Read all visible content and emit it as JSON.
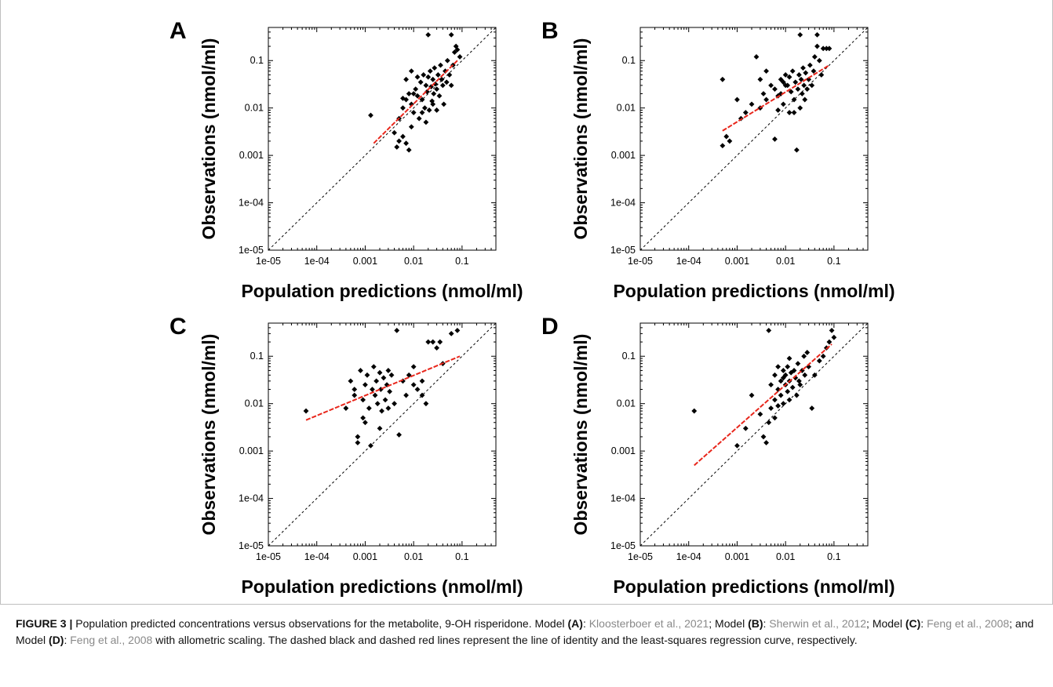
{
  "chart_data": [
    {
      "type": "scatter",
      "panel": "A",
      "xlabel": "Population predictions (nmol/ml)",
      "ylabel": "Observations (nmol/ml)",
      "xscale": "log",
      "yscale": "log",
      "xlim": [
        1e-05,
        0.5
      ],
      "ylim": [
        1e-05,
        0.5
      ],
      "xticks": [
        "1e-05",
        "1e-04",
        "0.001",
        "0.01",
        "0.1"
      ],
      "yticks": [
        "1e-05",
        "1e-04",
        "0.001",
        "0.01",
        "0.1"
      ],
      "identity_line": true,
      "regression": {
        "x": [
          0.0015,
          0.08
        ],
        "y": [
          0.0018,
          0.1
        ]
      },
      "points": [
        [
          0.0013,
          0.007
        ],
        [
          0.004,
          0.003
        ],
        [
          0.0045,
          0.0015
        ],
        [
          0.005,
          0.002
        ],
        [
          0.006,
          0.0025
        ],
        [
          0.007,
          0.0018
        ],
        [
          0.008,
          0.0013
        ],
        [
          0.009,
          0.004
        ],
        [
          0.005,
          0.006
        ],
        [
          0.006,
          0.01
        ],
        [
          0.007,
          0.015
        ],
        [
          0.008,
          0.02
        ],
        [
          0.009,
          0.012
        ],
        [
          0.01,
          0.008
        ],
        [
          0.011,
          0.025
        ],
        [
          0.012,
          0.018
        ],
        [
          0.013,
          0.006
        ],
        [
          0.014,
          0.035
        ],
        [
          0.015,
          0.015
        ],
        [
          0.016,
          0.05
        ],
        [
          0.017,
          0.01
        ],
        [
          0.018,
          0.03
        ],
        [
          0.019,
          0.022
        ],
        [
          0.02,
          0.045
        ],
        [
          0.021,
          0.009
        ],
        [
          0.022,
          0.06
        ],
        [
          0.023,
          0.028
        ],
        [
          0.024,
          0.014
        ],
        [
          0.025,
          0.04
        ],
        [
          0.026,
          0.02
        ],
        [
          0.027,
          0.07
        ],
        [
          0.028,
          0.032
        ],
        [
          0.03,
          0.025
        ],
        [
          0.032,
          0.05
        ],
        [
          0.034,
          0.018
        ],
        [
          0.036,
          0.08
        ],
        [
          0.038,
          0.04
        ],
        [
          0.04,
          0.03
        ],
        [
          0.042,
          0.012
        ],
        [
          0.045,
          0.06
        ],
        [
          0.048,
          0.035
        ],
        [
          0.05,
          0.1
        ],
        [
          0.055,
          0.05
        ],
        [
          0.06,
          0.03
        ],
        [
          0.065,
          0.08
        ],
        [
          0.07,
          0.15
        ],
        [
          0.075,
          0.2
        ],
        [
          0.08,
          0.17
        ],
        [
          0.09,
          0.12
        ],
        [
          0.02,
          0.35
        ],
        [
          0.06,
          0.35
        ],
        [
          0.007,
          0.04
        ],
        [
          0.009,
          0.06
        ],
        [
          0.012,
          0.045
        ],
        [
          0.01,
          0.02
        ],
        [
          0.006,
          0.016
        ],
        [
          0.015,
          0.008
        ],
        [
          0.018,
          0.005
        ],
        [
          0.025,
          0.012
        ],
        [
          0.03,
          0.009
        ]
      ]
    },
    {
      "type": "scatter",
      "panel": "B",
      "xlabel": "Population predictions (nmol/ml)",
      "ylabel": "Observations (nmol/ml)",
      "xscale": "log",
      "yscale": "log",
      "xlim": [
        1e-05,
        0.5
      ],
      "ylim": [
        1e-05,
        0.5
      ],
      "xticks": [
        "1e-05",
        "1e-04",
        "0.001",
        "0.01",
        "0.1"
      ],
      "yticks": [
        "1e-05",
        "1e-04",
        "0.001",
        "0.01",
        "0.1"
      ],
      "identity_line": true,
      "regression": {
        "x": [
          0.0005,
          0.08
        ],
        "y": [
          0.0033,
          0.08
        ]
      },
      "points": [
        [
          0.0005,
          0.04
        ],
        [
          0.0005,
          0.0016
        ],
        [
          0.0006,
          0.0025
        ],
        [
          0.0007,
          0.002
        ],
        [
          0.001,
          0.015
        ],
        [
          0.0012,
          0.006
        ],
        [
          0.0015,
          0.008
        ],
        [
          0.002,
          0.012
        ],
        [
          0.0025,
          0.12
        ],
        [
          0.003,
          0.01
        ],
        [
          0.0035,
          0.02
        ],
        [
          0.004,
          0.015
        ],
        [
          0.005,
          0.03
        ],
        [
          0.006,
          0.0022
        ],
        [
          0.006,
          0.025
        ],
        [
          0.007,
          0.018
        ],
        [
          0.008,
          0.04
        ],
        [
          0.009,
          0.012
        ],
        [
          0.01,
          0.05
        ],
        [
          0.011,
          0.03
        ],
        [
          0.012,
          0.008
        ],
        [
          0.013,
          0.022
        ],
        [
          0.014,
          0.06
        ],
        [
          0.015,
          0.015
        ],
        [
          0.016,
          0.035
        ],
        [
          0.017,
          0.0013
        ],
        [
          0.018,
          0.025
        ],
        [
          0.019,
          0.05
        ],
        [
          0.02,
          0.01
        ],
        [
          0.021,
          0.04
        ],
        [
          0.022,
          0.02
        ],
        [
          0.023,
          0.07
        ],
        [
          0.024,
          0.03
        ],
        [
          0.025,
          0.015
        ],
        [
          0.026,
          0.055
        ],
        [
          0.028,
          0.025
        ],
        [
          0.03,
          0.04
        ],
        [
          0.032,
          0.08
        ],
        [
          0.035,
          0.03
        ],
        [
          0.038,
          0.06
        ],
        [
          0.04,
          0.12
        ],
        [
          0.045,
          0.2
        ],
        [
          0.05,
          0.1
        ],
        [
          0.055,
          0.05
        ],
        [
          0.06,
          0.18
        ],
        [
          0.07,
          0.18
        ],
        [
          0.08,
          0.18
        ],
        [
          0.02,
          0.35
        ],
        [
          0.045,
          0.35
        ],
        [
          0.008,
          0.02
        ],
        [
          0.01,
          0.03
        ],
        [
          0.012,
          0.045
        ],
        [
          0.007,
          0.009
        ],
        [
          0.009,
          0.035
        ],
        [
          0.015,
          0.008
        ],
        [
          0.004,
          0.06
        ],
        [
          0.003,
          0.04
        ]
      ]
    },
    {
      "type": "scatter",
      "panel": "C",
      "xlabel": "Population predictions (nmol/ml)",
      "ylabel": "Observations (nmol/ml)",
      "xscale": "log",
      "yscale": "log",
      "xlim": [
        1e-05,
        0.5
      ],
      "ylim": [
        1e-05,
        0.5
      ],
      "xticks": [
        "1e-05",
        "1e-04",
        "0.001",
        "0.01",
        "0.1"
      ],
      "yticks": [
        "1e-05",
        "1e-04",
        "0.001",
        "0.01",
        "0.1"
      ],
      "identity_line": true,
      "regression": {
        "x": [
          6e-05,
          0.09
        ],
        "y": [
          0.0045,
          0.1
        ]
      },
      "points": [
        [
          6e-05,
          0.007
        ],
        [
          0.0004,
          0.008
        ],
        [
          0.0005,
          0.03
        ],
        [
          0.0006,
          0.015
        ],
        [
          0.0007,
          0.002
        ],
        [
          0.0007,
          0.0015
        ],
        [
          0.0008,
          0.05
        ],
        [
          0.0009,
          0.012
        ],
        [
          0.001,
          0.025
        ],
        [
          0.001,
          0.004
        ],
        [
          0.0011,
          0.04
        ],
        [
          0.0012,
          0.008
        ],
        [
          0.0013,
          0.0013
        ],
        [
          0.0014,
          0.02
        ],
        [
          0.0015,
          0.06
        ],
        [
          0.0016,
          0.015
        ],
        [
          0.0017,
          0.03
        ],
        [
          0.0018,
          0.01
        ],
        [
          0.002,
          0.045
        ],
        [
          0.0021,
          0.02
        ],
        [
          0.0022,
          0.007
        ],
        [
          0.0024,
          0.035
        ],
        [
          0.0026,
          0.012
        ],
        [
          0.0028,
          0.025
        ],
        [
          0.003,
          0.05
        ],
        [
          0.0032,
          0.018
        ],
        [
          0.0035,
          0.04
        ],
        [
          0.004,
          0.01
        ],
        [
          0.0045,
          0.35
        ],
        [
          0.005,
          0.0022
        ],
        [
          0.006,
          0.03
        ],
        [
          0.007,
          0.015
        ],
        [
          0.008,
          0.04
        ],
        [
          0.01,
          0.06
        ],
        [
          0.012,
          0.02
        ],
        [
          0.015,
          0.015
        ],
        [
          0.018,
          0.01
        ],
        [
          0.02,
          0.2
        ],
        [
          0.025,
          0.2
        ],
        [
          0.03,
          0.15
        ],
        [
          0.035,
          0.2
        ],
        [
          0.04,
          0.07
        ],
        [
          0.06,
          0.3
        ],
        [
          0.08,
          0.35
        ],
        [
          0.015,
          0.03
        ],
        [
          0.01,
          0.025
        ],
        [
          0.0009,
          0.005
        ],
        [
          0.002,
          0.003
        ],
        [
          0.003,
          0.008
        ],
        [
          0.0006,
          0.02
        ]
      ]
    },
    {
      "type": "scatter",
      "panel": "D",
      "xlabel": "Population predictions (nmol/ml)",
      "ylabel": "Observations (nmol/ml)",
      "xscale": "log",
      "yscale": "log",
      "xlim": [
        1e-05,
        0.5
      ],
      "ylim": [
        1e-05,
        0.5
      ],
      "xticks": [
        "1e-05",
        "1e-04",
        "0.001",
        "0.01",
        "0.1"
      ],
      "yticks": [
        "1e-05",
        "1e-04",
        "0.001",
        "0.01",
        "0.1"
      ],
      "identity_line": true,
      "regression": {
        "x": [
          0.00013,
          0.09
        ],
        "y": [
          0.0005,
          0.18
        ]
      },
      "points": [
        [
          0.00013,
          0.007
        ],
        [
          0.001,
          0.0013
        ],
        [
          0.0015,
          0.003
        ],
        [
          0.002,
          0.015
        ],
        [
          0.003,
          0.006
        ],
        [
          0.0035,
          0.002
        ],
        [
          0.004,
          0.0015
        ],
        [
          0.0045,
          0.35
        ],
        [
          0.005,
          0.008
        ],
        [
          0.005,
          0.025
        ],
        [
          0.006,
          0.012
        ],
        [
          0.006,
          0.04
        ],
        [
          0.007,
          0.02
        ],
        [
          0.007,
          0.06
        ],
        [
          0.008,
          0.015
        ],
        [
          0.008,
          0.03
        ],
        [
          0.009,
          0.05
        ],
        [
          0.009,
          0.01
        ],
        [
          0.01,
          0.025
        ],
        [
          0.01,
          0.04
        ],
        [
          0.011,
          0.018
        ],
        [
          0.011,
          0.06
        ],
        [
          0.012,
          0.03
        ],
        [
          0.012,
          0.012
        ],
        [
          0.013,
          0.045
        ],
        [
          0.014,
          0.022
        ],
        [
          0.015,
          0.05
        ],
        [
          0.016,
          0.035
        ],
        [
          0.017,
          0.015
        ],
        [
          0.018,
          0.07
        ],
        [
          0.019,
          0.03
        ],
        [
          0.02,
          0.025
        ],
        [
          0.022,
          0.05
        ],
        [
          0.024,
          0.1
        ],
        [
          0.025,
          0.04
        ],
        [
          0.028,
          0.12
        ],
        [
          0.03,
          0.06
        ],
        [
          0.035,
          0.008
        ],
        [
          0.04,
          0.04
        ],
        [
          0.05,
          0.08
        ],
        [
          0.06,
          0.1
        ],
        [
          0.07,
          0.15
        ],
        [
          0.08,
          0.2
        ],
        [
          0.09,
          0.35
        ],
        [
          0.1,
          0.25
        ],
        [
          0.0045,
          0.004
        ],
        [
          0.006,
          0.005
        ],
        [
          0.007,
          0.009
        ],
        [
          0.009,
          0.035
        ],
        [
          0.012,
          0.09
        ]
      ]
    }
  ],
  "panels": [
    {
      "letter": "A",
      "xlabel": "Population predictions (nmol/ml)",
      "ylabel": "Observations (nmol/ml)",
      "xticks": [
        "1e-05",
        "1e-04",
        "0.001",
        "0.01",
        "0.1"
      ],
      "yticks": [
        "1e-05",
        "1e-04",
        "0.001",
        "0.01",
        "0.1"
      ]
    },
    {
      "letter": "B",
      "xlabel": "Population predictions (nmol/ml)",
      "ylabel": "Observations (nmol/ml)",
      "xticks": [
        "1e-05",
        "1e-04",
        "0.001",
        "0.01",
        "0.1"
      ],
      "yticks": [
        "1e-05",
        "1e-04",
        "0.001",
        "0.01",
        "0.1"
      ]
    },
    {
      "letter": "C",
      "xlabel": "Population predictions (nmol/ml)",
      "ylabel": "Observations (nmol/ml)",
      "xticks": [
        "1e-05",
        "1e-04",
        "0.001",
        "0.01",
        "0.1"
      ],
      "yticks": [
        "1e-05",
        "1e-04",
        "0.001",
        "0.01",
        "0.1"
      ]
    },
    {
      "letter": "D",
      "xlabel": "Population predictions (nmol/ml)",
      "ylabel": "Observations (nmol/ml)",
      "xticks": [
        "1e-05",
        "1e-04",
        "0.001",
        "0.01",
        "0.1"
      ],
      "yticks": [
        "1e-05",
        "1e-04",
        "0.001",
        "0.01",
        "0.1"
      ]
    }
  ],
  "colors": {
    "points": "#000000",
    "identity": "#000000",
    "regression": "#e8261b",
    "citation": "#8a8a8a"
  },
  "caption": {
    "label": "FIGURE 3 |",
    "t1": " Population predicted concentrations versus observations for the metabolite, 9-OH risperidone. Model ",
    "mA": "(A)",
    "t2": ": ",
    "c1": "Kloosterboer et al., 2021",
    "t3": "; Model ",
    "mB": "(B)",
    "t4": ": ",
    "c2": "Sherwin et al., 2012",
    "t5": "; Model ",
    "mC": "(C)",
    "t6": ": ",
    "c3": "Feng et al., 2008",
    "t7": "; and Model ",
    "mD": "(D)",
    "t8": ": ",
    "c4": "Feng et al., 2008",
    "t9": " with allometric scaling. The dashed black and dashed red lines represent the line of identity and the least-squares regression curve, respectively."
  }
}
